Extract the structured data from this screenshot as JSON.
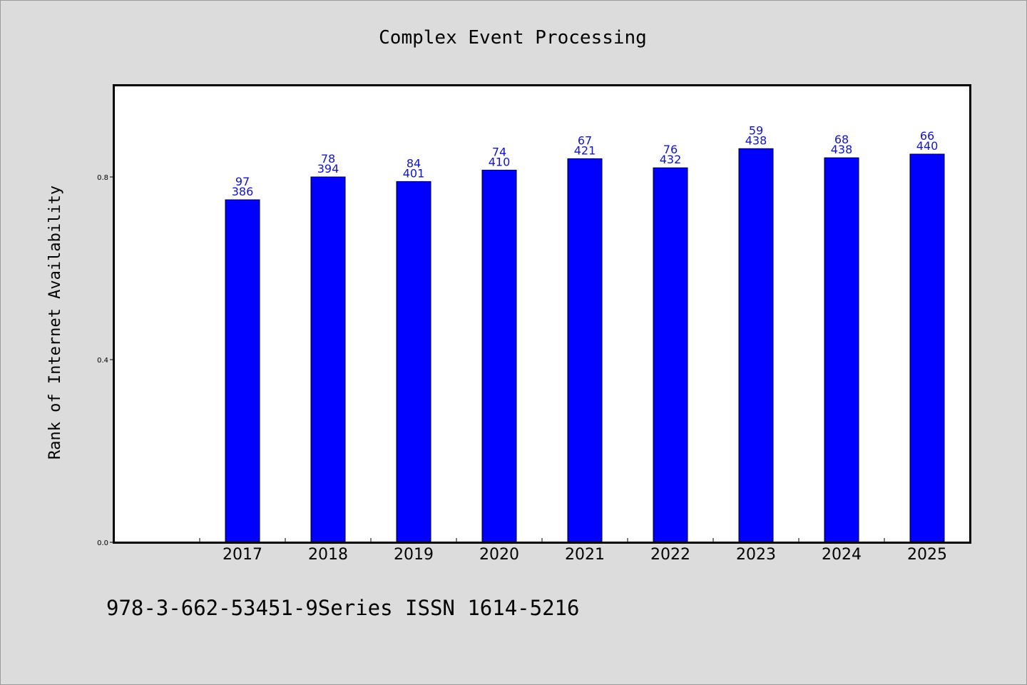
{
  "chart_data": {
    "type": "bar",
    "title": "Complex Event Processing",
    "xlabel": "",
    "ylabel": "Rank of Internet Availability",
    "categories": [
      "2017",
      "2018",
      "2019",
      "2020",
      "2021",
      "2022",
      "2023",
      "2024",
      "2025"
    ],
    "values": [
      0.75,
      0.8,
      0.79,
      0.815,
      0.84,
      0.82,
      0.862,
      0.842,
      0.85
    ],
    "labels_top": [
      "97",
      "78",
      "84",
      "74",
      "67",
      "76",
      "59",
      "68",
      "66"
    ],
    "labels_bottom": [
      "386",
      "394",
      "401",
      "410",
      "421",
      "432",
      "438",
      "438",
      "440"
    ],
    "ylim": [
      0.0,
      1.0
    ],
    "yticks": [
      "0.0",
      "0.4",
      "0.8"
    ],
    "grid": false,
    "legend": "none",
    "colors": {
      "bar": "#0000ff",
      "data_label": "#1414c8",
      "background": "#dcdcdc",
      "plot_background": "#ffffff"
    }
  },
  "footer": {
    "text": "978-3-662-53451-9Series ISSN 1614-5216"
  }
}
